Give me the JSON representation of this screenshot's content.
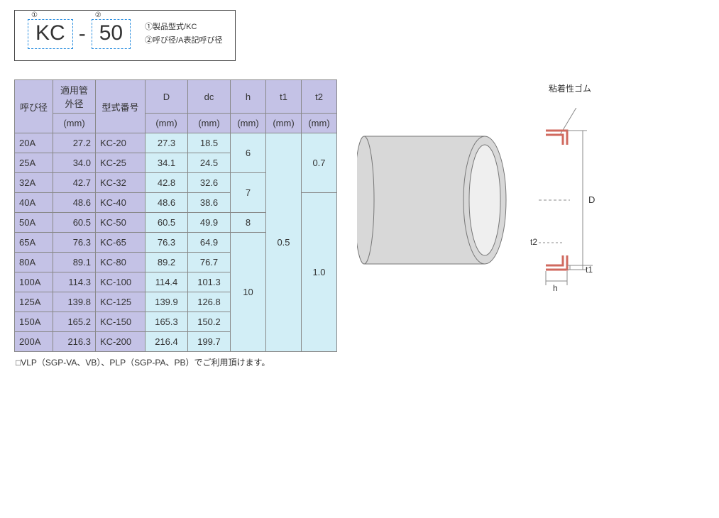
{
  "model": {
    "code1": "KC",
    "code2": "50",
    "sup1": "①",
    "sup2": "②",
    "separator": "-",
    "legend1": "①製品型式/KC",
    "legend2": "②呼び径/A表記呼び径"
  },
  "table": {
    "headers": {
      "col0_top": "呼び径",
      "col1_top": "適用管外径",
      "col1_unit": "(mm)",
      "col2_top": "型式番号",
      "col3_top": "D",
      "col3_unit": "(mm)",
      "col4_top": "dc",
      "col4_unit": "(mm)",
      "col5_top": "h",
      "col5_unit": "(mm)",
      "col6_top": "t1",
      "col6_unit": "(mm)",
      "col7_top": "t2",
      "col7_unit": "(mm)"
    },
    "widths": {
      "c0": 54,
      "c1": 60,
      "c2": 70,
      "c3": 60,
      "c4": 60,
      "c5": 50,
      "c6": 50,
      "c7": 50
    },
    "rows": [
      {
        "name": "20A",
        "od": "27.2",
        "model": "KC-20",
        "D": "27.3",
        "dc": "18.5"
      },
      {
        "name": "25A",
        "od": "34.0",
        "model": "KC-25",
        "D": "34.1",
        "dc": "24.5"
      },
      {
        "name": "32A",
        "od": "42.7",
        "model": "KC-32",
        "D": "42.8",
        "dc": "32.6"
      },
      {
        "name": "40A",
        "od": "48.6",
        "model": "KC-40",
        "D": "48.6",
        "dc": "38.6"
      },
      {
        "name": "50A",
        "od": "60.5",
        "model": "KC-50",
        "D": "60.5",
        "dc": "49.9"
      },
      {
        "name": "65A",
        "od": "76.3",
        "model": "KC-65",
        "D": "76.3",
        "dc": "64.9"
      },
      {
        "name": "80A",
        "od": "89.1",
        "model": "KC-80",
        "D": "89.2",
        "dc": "76.7"
      },
      {
        "name": "100A",
        "od": "114.3",
        "model": "KC-100",
        "D": "114.4",
        "dc": "101.3"
      },
      {
        "name": "125A",
        "od": "139.8",
        "model": "KC-125",
        "D": "139.9",
        "dc": "126.8"
      },
      {
        "name": "150A",
        "od": "165.2",
        "model": "KC-150",
        "D": "165.3",
        "dc": "150.2"
      },
      {
        "name": "200A",
        "od": "216.3",
        "model": "KC-200",
        "D": "216.4",
        "dc": "199.7"
      }
    ],
    "h_blocks": [
      {
        "span": 2,
        "v": "6"
      },
      {
        "span": 2,
        "v": "7"
      },
      {
        "span": 1,
        "v": "8"
      },
      {
        "span": 6,
        "v": "10"
      }
    ],
    "t1_blocks": [
      {
        "span": 11,
        "v": "0.5"
      }
    ],
    "t2_blocks": [
      {
        "span": 3,
        "v": "0.7"
      },
      {
        "span": 8,
        "v": "1.0"
      }
    ]
  },
  "footnote": "□VLP（SGP-VA、VB）、PLP（SGP-PA、PB）でご利用頂けます。",
  "diagram": {
    "rubber_label": "粘着性ゴム",
    "D_label": "D",
    "t1_label": "t1",
    "t2_label": "t2",
    "h_label": "h",
    "colors": {
      "cyl_fill": "#d8d8d8",
      "cyl_stroke": "#777",
      "inner_fill": "#efefef",
      "bracket": "#d06a5f",
      "dim_line": "#888"
    }
  }
}
